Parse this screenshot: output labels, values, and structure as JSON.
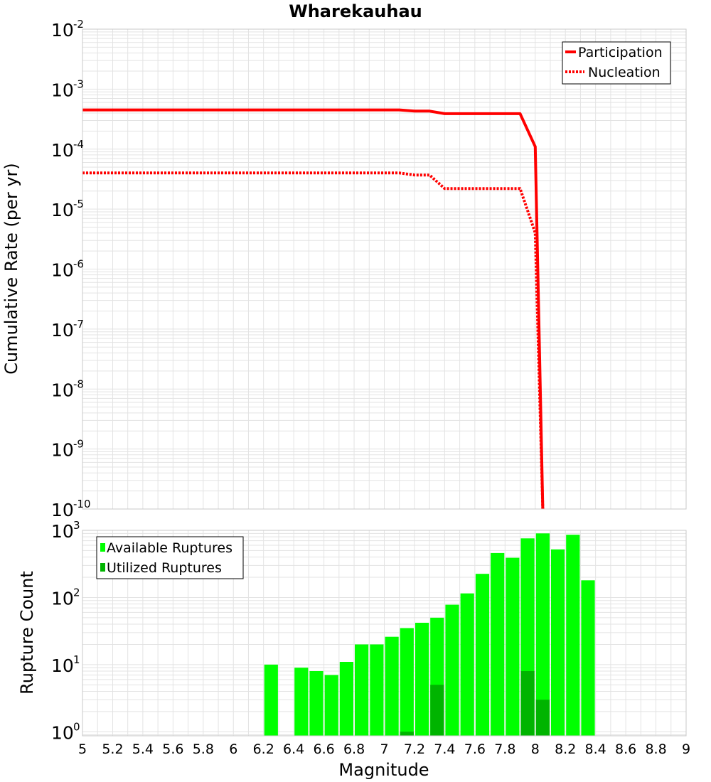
{
  "chart_data": [
    {
      "type": "line",
      "title": "Wharekauhau",
      "xlabel": "",
      "ylabel": "Cumulative Rate (per yr)",
      "xlim": [
        5,
        9
      ],
      "ylim_log10": [
        -10,
        -2
      ],
      "yscale": "log",
      "y_tick_exponents": [
        "-2",
        "-3",
        "-4",
        "-5",
        "-6",
        "-7",
        "-8",
        "-9",
        "-10"
      ],
      "grid": true,
      "legend_position": "top-right",
      "series": [
        {
          "name": "Participation",
          "style": "solid",
          "color": "#ff0000",
          "x": [
            5.0,
            5.1,
            5.2,
            5.3,
            5.4,
            5.5,
            5.6,
            5.7,
            5.8,
            5.9,
            6.0,
            6.1,
            6.2,
            6.3,
            6.4,
            6.5,
            6.6,
            6.7,
            6.8,
            6.9,
            7.0,
            7.1,
            7.2,
            7.3,
            7.4,
            7.5,
            7.6,
            7.7,
            7.8,
            7.9,
            8.0,
            8.05
          ],
          "y": [
            0.00045,
            0.00045,
            0.00045,
            0.00045,
            0.00045,
            0.00045,
            0.00045,
            0.00045,
            0.00045,
            0.00045,
            0.00045,
            0.00045,
            0.00045,
            0.00045,
            0.00045,
            0.00045,
            0.00045,
            0.00045,
            0.00045,
            0.00045,
            0.00045,
            0.00045,
            0.00043,
            0.00043,
            0.00039,
            0.00039,
            0.00039,
            0.00039,
            0.00039,
            0.00039,
            0.00011,
            1e-10
          ]
        },
        {
          "name": "Nucleation",
          "style": "dotted",
          "color": "#ff0000",
          "x": [
            5.0,
            5.1,
            5.2,
            5.3,
            5.4,
            5.5,
            5.6,
            5.7,
            5.8,
            5.9,
            6.0,
            6.1,
            6.2,
            6.3,
            6.4,
            6.5,
            6.6,
            6.7,
            6.8,
            6.9,
            7.0,
            7.1,
            7.2,
            7.3,
            7.4,
            7.5,
            7.6,
            7.7,
            7.8,
            7.9,
            8.0,
            8.05
          ],
          "y": [
            4e-05,
            4e-05,
            4e-05,
            4e-05,
            4e-05,
            4e-05,
            4e-05,
            4e-05,
            4e-05,
            4e-05,
            4e-05,
            4e-05,
            4e-05,
            4e-05,
            4e-05,
            4e-05,
            4e-05,
            4e-05,
            4e-05,
            4e-05,
            4e-05,
            4e-05,
            3.7e-05,
            3.7e-05,
            2.2e-05,
            2.2e-05,
            2.2e-05,
            2.2e-05,
            2.2e-05,
            2.2e-05,
            4e-06,
            1e-10
          ]
        }
      ]
    },
    {
      "type": "bar",
      "title": "",
      "xlabel": "Magnitude",
      "ylabel": "Rupture Count",
      "xlim": [
        5,
        9
      ],
      "ylim_log10": [
        -0.06,
        3
      ],
      "yscale": "log",
      "y_tick_exponents": [
        "3",
        "2",
        "1",
        "0"
      ],
      "x_ticks": [
        "5",
        "5.2",
        "5.4",
        "5.6",
        "5.8",
        "6",
        "6.2",
        "6.4",
        "6.6",
        "6.8",
        "7",
        "7.2",
        "7.4",
        "7.6",
        "7.8",
        "8",
        "8.2",
        "8.4",
        "8.6",
        "8.8",
        "9"
      ],
      "grid": true,
      "legend_position": "top-left",
      "bar_width": 0.1,
      "series": [
        {
          "name": "Available Ruptures",
          "color": "#00ff00",
          "x": [
            6.25,
            6.45,
            6.55,
            6.65,
            6.75,
            6.85,
            6.95,
            7.05,
            7.15,
            7.25,
            7.35,
            7.45,
            7.55,
            7.65,
            7.75,
            7.85,
            7.95,
            8.05,
            8.15,
            8.25,
            8.35
          ],
          "values": [
            10,
            9,
            8,
            7,
            11,
            20,
            20,
            26,
            35,
            42,
            50,
            78,
            115,
            225,
            460,
            390,
            760,
            900,
            520,
            860,
            180
          ]
        },
        {
          "name": "Utilized Ruptures",
          "color": "#00b400",
          "x": [
            7.15,
            7.35,
            7.95,
            8.05
          ],
          "values": [
            1,
            5,
            8,
            3
          ]
        }
      ]
    }
  ]
}
